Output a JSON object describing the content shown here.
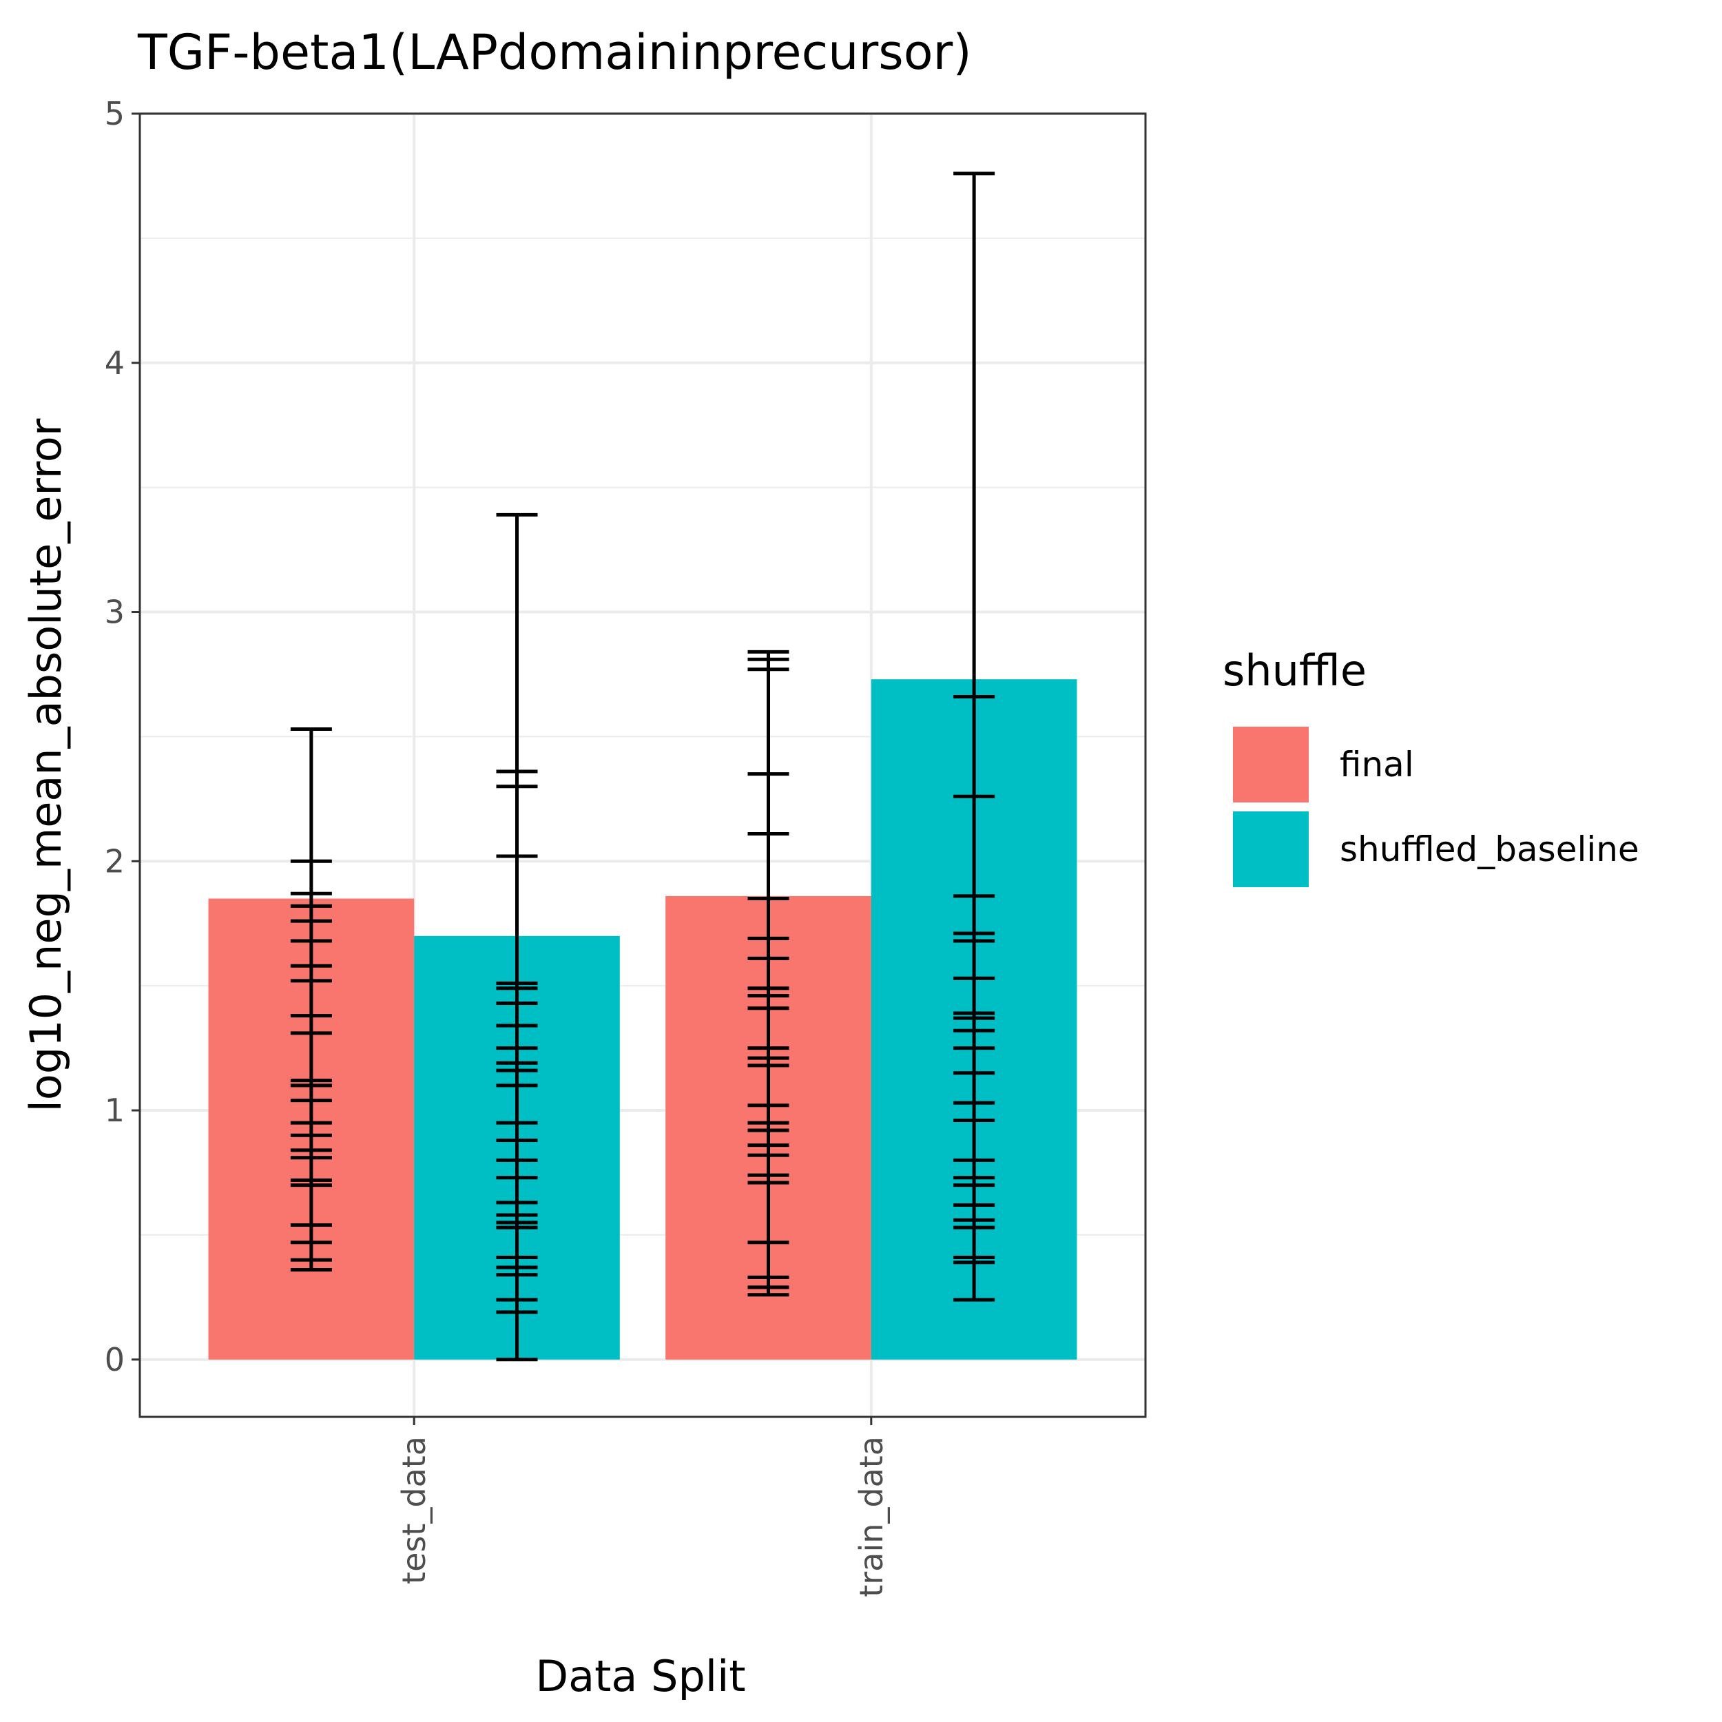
{
  "chart_data": {
    "type": "bar",
    "title": "TGF-beta1(LAPdomaininprecursor)",
    "xlabel": "Data Split",
    "ylabel": "log10_neg_mean_absolute_error",
    "categories": [
      "test_data",
      "train_data"
    ],
    "ylim": [
      -0.23,
      5
    ],
    "yticks": [
      0,
      1,
      2,
      3,
      4,
      5
    ],
    "grid": true,
    "legend": {
      "title": "shuffle",
      "placement": "right"
    },
    "series": [
      {
        "name": "final",
        "color": "#F8766D",
        "values": [
          1.85,
          1.86
        ],
        "error_ticks": [
          [
            0.36,
            0.4,
            0.47,
            0.54,
            0.7,
            0.72,
            0.81,
            0.84,
            0.9,
            0.95,
            1.04,
            1.1,
            1.12,
            1.31,
            1.38,
            1.52,
            1.58,
            1.68,
            1.76,
            1.82,
            1.87,
            2.0,
            2.53
          ],
          [
            0.26,
            0.29,
            0.33,
            0.47,
            0.71,
            0.74,
            0.82,
            0.86,
            0.92,
            0.95,
            1.02,
            1.18,
            1.21,
            1.25,
            1.41,
            1.46,
            1.49,
            1.61,
            1.69,
            1.85,
            2.11,
            2.35,
            2.77,
            2.81,
            2.84
          ]
        ]
      },
      {
        "name": "shuffled_baseline",
        "color": "#00BFC4",
        "values": [
          1.7,
          2.73
        ],
        "error_ticks": [
          [
            0.0,
            0.19,
            0.24,
            0.34,
            0.37,
            0.41,
            0.53,
            0.55,
            0.58,
            0.63,
            0.73,
            0.8,
            0.88,
            0.95,
            1.1,
            1.16,
            1.19,
            1.25,
            1.34,
            1.43,
            1.49,
            1.51,
            2.02,
            2.3,
            2.36,
            3.39
          ],
          [
            0.24,
            0.39,
            0.41,
            0.53,
            0.56,
            0.62,
            0.7,
            0.73,
            0.8,
            0.96,
            1.03,
            1.15,
            1.25,
            1.32,
            1.37,
            1.39,
            1.53,
            1.68,
            1.71,
            1.86,
            2.26,
            2.66,
            4.76
          ]
        ]
      }
    ]
  }
}
